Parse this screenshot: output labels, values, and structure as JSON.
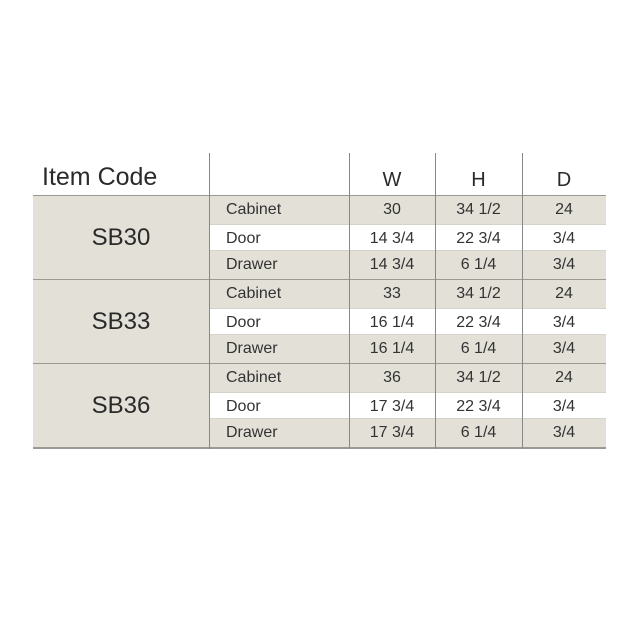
{
  "table": {
    "headers": {
      "item_code": "Item Code",
      "part": "",
      "w": "W",
      "h": "H",
      "d": "D"
    },
    "groups": [
      {
        "code": "SB30",
        "rows": [
          {
            "part": "Cabinet",
            "w": "30",
            "h": "34 1/2",
            "d": "24"
          },
          {
            "part": "Door",
            "w": "14 3/4",
            "h": "22 3/4",
            "d": "3/4"
          },
          {
            "part": "Drawer",
            "w": "14 3/4",
            "h": "6 1/4",
            "d": "3/4"
          }
        ]
      },
      {
        "code": "SB33",
        "rows": [
          {
            "part": "Cabinet",
            "w": "33",
            "h": "34 1/2",
            "d": "24"
          },
          {
            "part": "Door",
            "w": "16 1/4",
            "h": "22 3/4",
            "d": "3/4"
          },
          {
            "part": "Drawer",
            "w": "16 1/4",
            "h": "6 1/4",
            "d": "3/4"
          }
        ]
      },
      {
        "code": "SB36",
        "rows": [
          {
            "part": "Cabinet",
            "w": "36",
            "h": "34 1/2",
            "d": "24"
          },
          {
            "part": "Door",
            "w": "17 3/4",
            "h": "22 3/4",
            "d": "3/4"
          },
          {
            "part": "Drawer",
            "w": "17 3/4",
            "h": "6 1/4",
            "d": "3/4"
          }
        ]
      }
    ]
  },
  "colors": {
    "shaded_row": "#e2e0d7",
    "text": "#333333"
  }
}
